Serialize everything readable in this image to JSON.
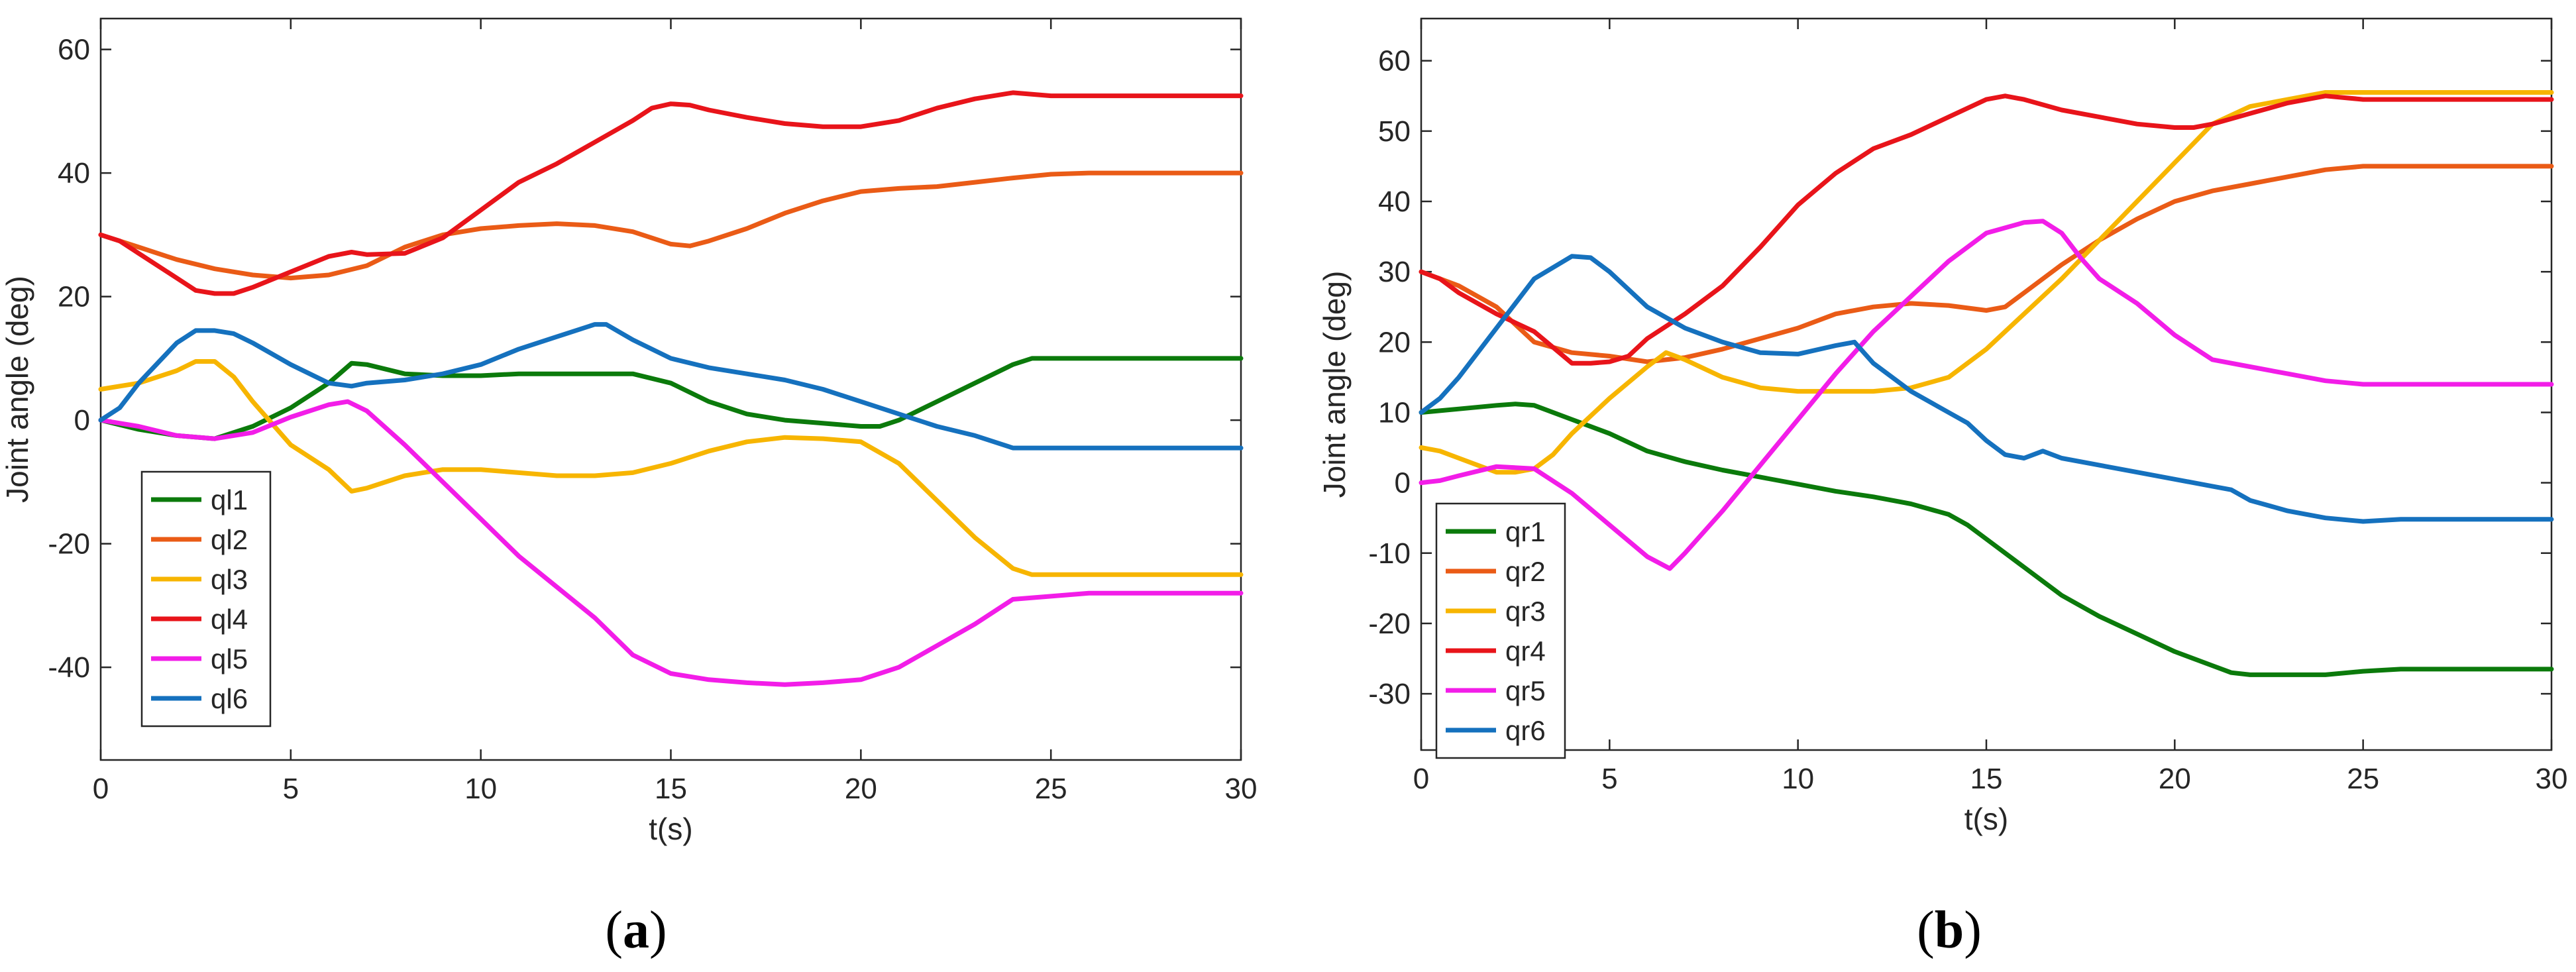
{
  "chart_data": [
    {
      "type": "line",
      "panel_label": "a",
      "xlabel": "t(s)",
      "ylabel": "Joint angle (deg)",
      "xlim": [
        0,
        30
      ],
      "ylim": [
        -55,
        65
      ],
      "xticks": [
        0,
        5,
        10,
        15,
        20,
        25,
        30
      ],
      "yticks": [
        -40,
        -20,
        0,
        20,
        40,
        60
      ],
      "legend_position": "bottom-left",
      "series": [
        {
          "name": "ql1",
          "color": "#0b7a0b",
          "x": [
            0,
            1,
            2,
            3,
            4,
            5,
            6,
            6.6,
            7,
            8,
            9,
            10,
            11,
            12,
            13,
            14,
            15,
            16,
            17,
            18,
            19,
            20,
            20.5,
            21,
            22,
            23,
            24,
            24.5,
            25,
            26,
            27,
            28,
            29,
            30
          ],
          "y": [
            0,
            -1.5,
            -2.5,
            -3,
            -1,
            2,
            6,
            9.2,
            9,
            7.5,
            7.2,
            7.2,
            7.5,
            7.5,
            7.5,
            7.5,
            6,
            3,
            1,
            0,
            -0.5,
            -1,
            -1,
            0,
            3,
            6,
            9,
            10,
            10,
            10,
            10,
            10,
            10,
            10
          ]
        },
        {
          "name": "ql2",
          "color": "#ea5b16",
          "x": [
            0,
            1,
            2,
            3,
            4,
            5,
            6,
            7,
            8,
            9,
            10,
            11,
            12,
            13,
            14,
            15,
            15.5,
            16,
            17,
            18,
            19,
            20,
            21,
            22,
            23,
            24,
            25,
            26,
            27,
            28,
            29,
            30
          ],
          "y": [
            30,
            28,
            26,
            24.5,
            23.5,
            23,
            23.5,
            25,
            28,
            30,
            31,
            31.5,
            31.8,
            31.5,
            30.5,
            28.5,
            28.2,
            29,
            31,
            33.5,
            35.5,
            37,
            37.5,
            37.8,
            38.5,
            39.2,
            39.8,
            40,
            40,
            40,
            40,
            40
          ]
        },
        {
          "name": "ql3",
          "color": "#f7b500",
          "x": [
            0,
            1,
            2,
            2.5,
            3,
            3.5,
            4,
            5,
            6,
            6.6,
            7,
            8,
            9,
            10,
            11,
            12,
            13,
            14,
            15,
            16,
            17,
            18,
            19,
            20,
            21,
            22,
            23,
            24,
            24.5,
            25,
            26,
            27,
            28,
            29,
            30
          ],
          "y": [
            5,
            6,
            8,
            9.5,
            9.5,
            7,
            3,
            -4,
            -8,
            -11.5,
            -11,
            -9,
            -8,
            -8,
            -8.5,
            -9,
            -9,
            -8.5,
            -7,
            -5,
            -3.5,
            -2.8,
            -3,
            -3.5,
            -7,
            -13,
            -19,
            -24,
            -25,
            -25,
            -25,
            -25,
            -25,
            -25,
            -25
          ]
        },
        {
          "name": "ql4",
          "color": "#e8141a",
          "x": [
            0,
            0.5,
            1,
            2,
            2.5,
            3,
            3.5,
            4,
            5,
            6,
            6.6,
            7,
            8,
            9,
            10,
            11,
            12,
            13,
            14,
            14.5,
            15,
            15.5,
            16,
            17,
            18,
            19,
            20,
            21,
            22,
            23,
            24,
            25,
            26,
            27,
            28,
            29,
            30
          ],
          "y": [
            30,
            29,
            27,
            23,
            21,
            20.5,
            20.5,
            21.5,
            24,
            26.5,
            27.2,
            26.8,
            27,
            29.5,
            34,
            38.5,
            41.5,
            45,
            48.5,
            50.5,
            51.2,
            51,
            50.2,
            49,
            48,
            47.5,
            47.5,
            48.5,
            50.5,
            52,
            53,
            52.5,
            52.5,
            52.5,
            52.5,
            52.5,
            52.5
          ]
        },
        {
          "name": "ql5",
          "color": "#f21de8",
          "x": [
            0,
            1,
            2,
            3,
            4,
            5,
            6,
            6.5,
            7,
            8,
            9,
            10,
            11,
            12,
            13,
            14,
            15,
            16,
            17,
            18,
            19,
            20,
            21,
            22,
            23,
            24,
            25,
            26,
            27,
            28,
            29,
            30
          ],
          "y": [
            0,
            -1,
            -2.5,
            -3,
            -2,
            0.5,
            2.5,
            3,
            1.5,
            -4,
            -10,
            -16,
            -22,
            -27,
            -32,
            -38,
            -41,
            -42,
            -42.5,
            -42.8,
            -42.5,
            -42,
            -40,
            -36.5,
            -33,
            -29,
            -28.5,
            -28,
            -28,
            -28,
            -28,
            -28
          ]
        },
        {
          "name": "ql6",
          "color": "#1571be",
          "x": [
            0,
            0.5,
            1,
            2,
            2.5,
            3,
            3.5,
            4,
            5,
            6,
            6.6,
            7,
            8,
            9,
            10,
            11,
            12,
            13,
            13.3,
            14,
            15,
            16,
            17,
            18,
            19,
            20,
            21,
            22,
            23,
            24,
            25,
            26,
            27,
            28,
            29,
            30
          ],
          "y": [
            0,
            2,
            6,
            12.5,
            14.5,
            14.5,
            14,
            12.5,
            9,
            6,
            5.5,
            6,
            6.5,
            7.5,
            9,
            11.5,
            13.5,
            15.5,
            15.5,
            13,
            10,
            8.5,
            7.5,
            6.5,
            5,
            3,
            1,
            -1,
            -2.5,
            -4.5,
            -4.5,
            -4.5,
            -4.5,
            -4.5,
            -4.5,
            -4.5
          ]
        }
      ]
    },
    {
      "type": "line",
      "panel_label": "b",
      "xlabel": "t(s)",
      "ylabel": "Joint angle (deg)",
      "xlim": [
        0,
        30
      ],
      "ylim": [
        -38,
        66
      ],
      "xticks": [
        0,
        5,
        10,
        15,
        20,
        25,
        30
      ],
      "yticks": [
        -30,
        -20,
        -10,
        0,
        10,
        20,
        30,
        40,
        50,
        60
      ],
      "legend_position": "bottom-left",
      "series": [
        {
          "name": "qr1",
          "color": "#0b7a0b",
          "x": [
            0,
            1,
            2,
            2.5,
            3,
            4,
            5,
            6,
            7,
            8,
            9,
            10,
            11,
            12,
            13,
            14,
            14.5,
            15,
            16,
            17,
            18,
            19,
            20,
            21,
            21.5,
            22,
            23,
            24,
            25,
            26,
            27,
            28,
            29,
            30
          ],
          "y": [
            10,
            10.5,
            11,
            11.2,
            11,
            9,
            7,
            4.5,
            3,
            1.8,
            0.8,
            -0.2,
            -1.2,
            -2,
            -3,
            -4.5,
            -6,
            -8,
            -12,
            -16,
            -19,
            -21.5,
            -24,
            -26,
            -27,
            -27.3,
            -27.3,
            -27.3,
            -26.8,
            -26.5,
            -26.5,
            -26.5,
            -26.5,
            -26.5
          ]
        },
        {
          "name": "qr2",
          "color": "#ea5b16",
          "x": [
            0,
            1,
            2,
            3,
            4,
            5,
            6,
            7,
            8,
            9,
            10,
            11,
            12,
            13,
            14,
            15,
            15.5,
            16,
            17,
            18,
            19,
            20,
            21,
            22,
            23,
            24,
            25,
            26,
            27,
            28,
            29,
            30
          ],
          "y": [
            30,
            28,
            25,
            20,
            18.5,
            18,
            17.2,
            17.8,
            19,
            20.5,
            22,
            24,
            25,
            25.5,
            25.2,
            24.5,
            25,
            27,
            31,
            34.5,
            37.5,
            40,
            41.5,
            42.5,
            43.5,
            44.5,
            45,
            45,
            45,
            45,
            45,
            45
          ]
        },
        {
          "name": "qr3",
          "color": "#f7b500",
          "x": [
            0,
            0.5,
            1,
            2,
            2.5,
            3,
            3.5,
            4,
            5,
            6,
            6.5,
            7,
            8,
            9,
            10,
            11,
            12,
            13,
            14,
            15,
            16,
            17,
            18,
            19,
            20,
            21,
            22,
            23,
            24,
            25,
            26,
            27,
            28,
            29,
            30
          ],
          "y": [
            5,
            4.5,
            3.5,
            1.5,
            1.5,
            2,
            4,
            7,
            12,
            16.5,
            18.5,
            17.5,
            15,
            13.5,
            13,
            13,
            13,
            13.5,
            15,
            19,
            24,
            29,
            34.5,
            40,
            45.5,
            51,
            53.5,
            54.5,
            55.5,
            55.5,
            55.5,
            55.5,
            55.5,
            55.5,
            55.5
          ]
        },
        {
          "name": "qr4",
          "color": "#e8141a",
          "x": [
            0,
            0.5,
            1,
            2,
            3,
            4,
            4.5,
            5,
            5.5,
            6,
            7,
            8,
            9,
            10,
            11,
            12,
            13,
            14,
            15,
            15.5,
            16,
            17,
            18,
            19,
            20,
            20.5,
            21,
            22,
            23,
            24,
            25,
            26,
            27,
            28,
            29,
            30
          ],
          "y": [
            30,
            29,
            27,
            24,
            21.5,
            17,
            17,
            17.2,
            18,
            20.5,
            24,
            28,
            33.5,
            39.5,
            44,
            47.5,
            49.5,
            52,
            54.5,
            55,
            54.5,
            53,
            52,
            51,
            50.5,
            50.5,
            51,
            52.5,
            54,
            55,
            54.5,
            54.5,
            54.5,
            54.5,
            54.5,
            54.5
          ]
        },
        {
          "name": "qr5",
          "color": "#f21de8",
          "x": [
            0,
            0.5,
            1,
            2,
            3,
            4,
            5,
            6,
            6.6,
            7,
            8,
            9,
            10,
            11,
            12,
            13,
            14,
            15,
            16,
            16.5,
            17,
            17.5,
            18,
            19,
            20,
            21,
            22,
            23,
            24,
            25,
            26,
            27,
            28,
            29,
            30
          ],
          "y": [
            0,
            0.3,
            1,
            2.3,
            2,
            -1.5,
            -6,
            -10.5,
            -12.2,
            -10,
            -4,
            2.5,
            9,
            15.5,
            21.5,
            26.5,
            31.5,
            35.5,
            37,
            37.2,
            35.5,
            32,
            29,
            25.5,
            21,
            17.5,
            16.5,
            15.5,
            14.5,
            14,
            14,
            14,
            14,
            14,
            14
          ]
        },
        {
          "name": "qr6",
          "color": "#1571be",
          "x": [
            0,
            0.5,
            1,
            2,
            3,
            4,
            4.5,
            5,
            6,
            6.5,
            7,
            8,
            9,
            10,
            11,
            11.5,
            12,
            13,
            14,
            14.5,
            15,
            15.5,
            16,
            16.5,
            17,
            18,
            19,
            20,
            21,
            21.5,
            22,
            23,
            24,
            25,
            26,
            27,
            28,
            29,
            30
          ],
          "y": [
            10,
            12,
            15,
            22,
            29,
            32.2,
            32,
            30,
            25,
            23.5,
            22,
            20,
            18.5,
            18.3,
            19.5,
            20,
            17,
            13,
            10,
            8.5,
            6,
            4,
            3.5,
            4.5,
            3.5,
            2.5,
            1.5,
            0.5,
            -0.5,
            -1,
            -2.5,
            -4,
            -5,
            -5.5,
            -5.2,
            -5.2,
            -5.2,
            -5.2,
            -5.2
          ]
        }
      ]
    }
  ],
  "captions": {
    "a": {
      "open": "(",
      "letter": "a",
      "close": ")"
    },
    "b": {
      "open": "(",
      "letter": "b",
      "close": ")"
    }
  }
}
